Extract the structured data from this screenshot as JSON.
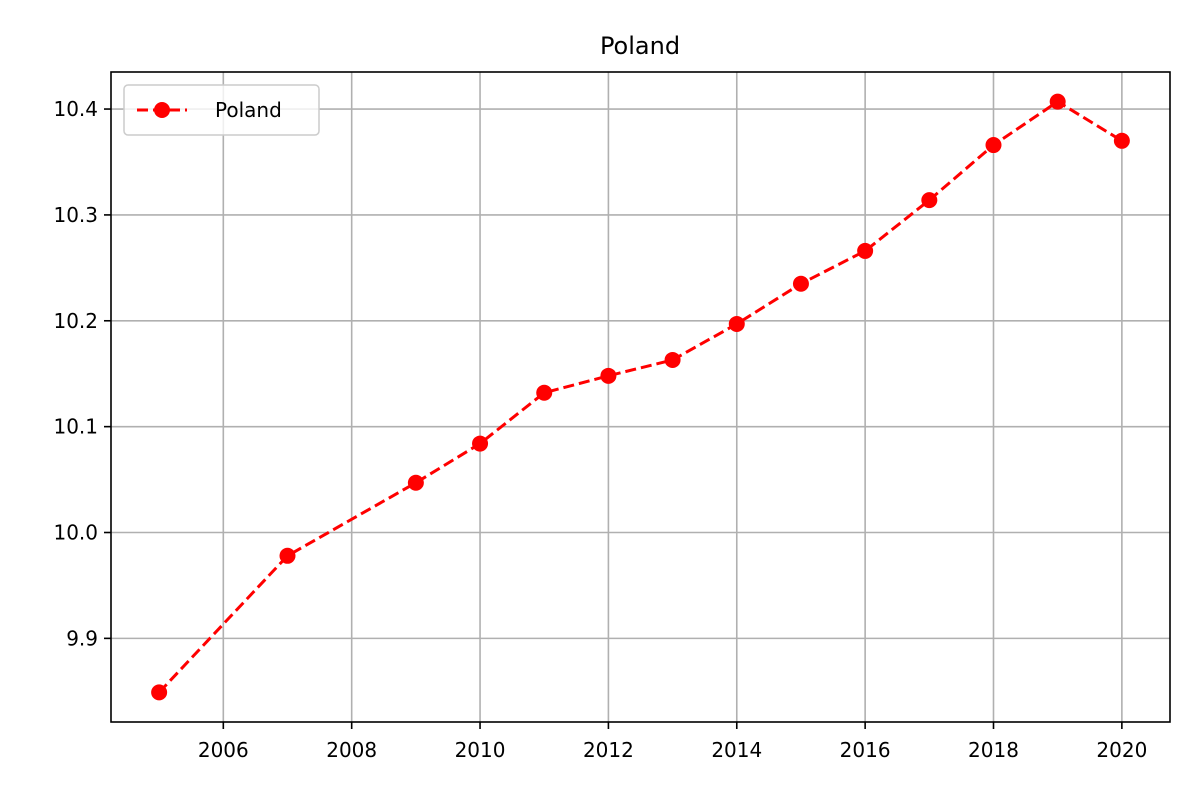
{
  "chart_data": {
    "type": "line",
    "title": "Poland",
    "xlabel": "",
    "ylabel": "",
    "x": [
      2005,
      2007,
      2009,
      2010,
      2011,
      2012,
      2013,
      2014,
      2015,
      2016,
      2017,
      2018,
      2019,
      2020
    ],
    "series": [
      {
        "name": "Poland",
        "color": "#ff0000",
        "line_style": "dashed",
        "marker": "circle",
        "values": [
          9.849,
          9.978,
          10.047,
          10.084,
          10.132,
          10.148,
          10.163,
          10.197,
          10.235,
          10.266,
          10.314,
          10.366,
          10.407,
          10.37
        ]
      }
    ],
    "xlim": [
      2004.25,
      2020.75
    ],
    "ylim": [
      9.821,
      10.435
    ],
    "x_ticks": [
      "2006",
      "2008",
      "2010",
      "2012",
      "2014",
      "2016",
      "2018",
      "2020"
    ],
    "y_ticks": [
      "9.9",
      "10.0",
      "10.1",
      "10.2",
      "10.3",
      "10.4"
    ],
    "grid": true,
    "legend_position": "upper-left"
  }
}
